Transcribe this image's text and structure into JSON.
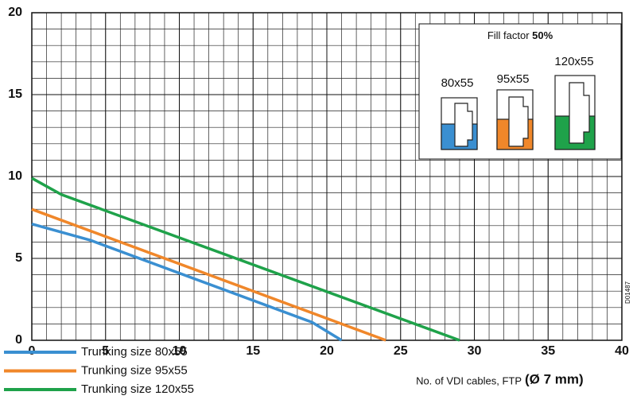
{
  "chart_data": {
    "type": "line",
    "x_label": "No. of VDI cables, FTP",
    "x_label_bold": "(Ø 7 mm)",
    "inset_title": "Fill factor ",
    "inset_title_bold": "50%",
    "inset_labels": [
      "80x55",
      "95x55",
      "120x55"
    ],
    "code": "D01487",
    "series": [
      {
        "name": "Trunking size 80x55",
        "color": "#3a8fd1",
        "x": [
          0,
          4,
          19,
          21
        ],
        "values": [
          7.1,
          6.1,
          1.1,
          0
        ]
      },
      {
        "name": "Trunking size 95x55",
        "color": "#f0872a",
        "x": [
          0,
          24
        ],
        "values": [
          8.0,
          0
        ]
      },
      {
        "name": "Trunking size 120x55",
        "color": "#1fa24a",
        "x": [
          0,
          2,
          29
        ],
        "values": [
          9.9,
          8.9,
          0
        ]
      }
    ],
    "xlim": [
      0,
      40
    ],
    "xticks": [
      0,
      5,
      10,
      15,
      20,
      25,
      30,
      35,
      40
    ],
    "ylim": [
      0,
      20
    ],
    "yticks": [
      0,
      5,
      10,
      15,
      20
    ],
    "grid": true,
    "minor_step": 1
  }
}
